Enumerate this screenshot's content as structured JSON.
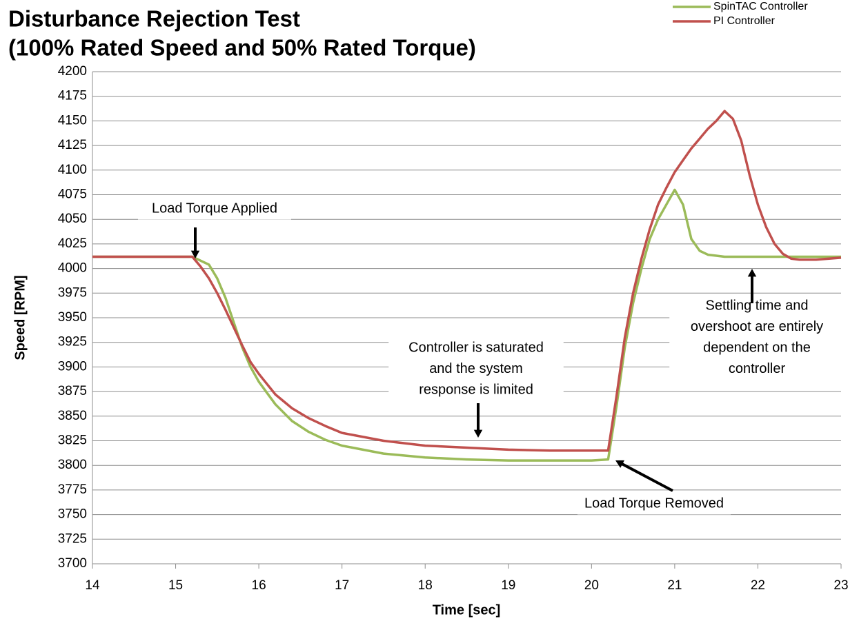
{
  "chart_data": {
    "type": "line",
    "title": "Disturbance Rejection Test",
    "subtitle": "(100% Rated Speed and 50% Rated Torque)",
    "xlabel": "Time [sec]",
    "ylabel": "Speed [RPM]",
    "x": [
      14,
      15,
      15.2,
      15.3,
      15.4,
      15.5,
      15.6,
      15.7,
      15.8,
      15.9,
      16,
      16.2,
      16.4,
      16.6,
      16.8,
      17,
      17.5,
      18,
      18.5,
      19,
      19.5,
      20,
      20.2,
      20.3,
      20.4,
      20.5,
      20.6,
      20.7,
      20.8,
      20.9,
      21,
      21.1,
      21.2,
      21.3,
      21.4,
      21.5,
      21.6,
      21.7,
      21.8,
      21.9,
      22,
      22.1,
      22.2,
      22.3,
      22.4,
      22.5,
      22.7,
      23
    ],
    "series": [
      {
        "name": "SpinTAC Controller",
        "color": "#9bbb59",
        "values": [
          4012,
          4012,
          4012,
          4008,
          4004,
          3990,
          3970,
          3945,
          3920,
          3900,
          3885,
          3862,
          3845,
          3834,
          3826,
          3820,
          3812,
          3808,
          3806,
          3805,
          3805,
          3805,
          3806,
          3860,
          3920,
          3965,
          4000,
          4030,
          4050,
          4065,
          4080,
          4065,
          4030,
          4018,
          4014,
          4013,
          4012,
          4012,
          4012,
          4012,
          4012,
          4012,
          4012,
          4012,
          4012,
          4012,
          4012,
          4012
        ]
      },
      {
        "name": "PI Controller",
        "color": "#c0504d",
        "values": [
          4012,
          4012,
          4012,
          4002,
          3990,
          3975,
          3958,
          3940,
          3922,
          3905,
          3893,
          3872,
          3858,
          3848,
          3840,
          3833,
          3825,
          3820,
          3818,
          3816,
          3815,
          3815,
          3815,
          3870,
          3930,
          3975,
          4010,
          4040,
          4065,
          4082,
          4098,
          4110,
          4122,
          4132,
          4142,
          4150,
          4160,
          4152,
          4130,
          4095,
          4065,
          4042,
          4025,
          4015,
          4010,
          4009,
          4009,
          4011
        ]
      }
    ],
    "xlim": [
      14,
      23
    ],
    "xticks": [
      14,
      15,
      16,
      17,
      18,
      19,
      20,
      21,
      22,
      23
    ],
    "ylim": [
      3700,
      4200
    ],
    "yticks": [
      3700,
      3725,
      3750,
      3775,
      3800,
      3825,
      3850,
      3875,
      3900,
      3925,
      3950,
      3975,
      4000,
      4025,
      4050,
      4075,
      4100,
      4125,
      4150,
      4175,
      4200
    ],
    "grid": true,
    "legend": "top-right",
    "annotations": [
      {
        "lines": [
          "Load Torque  Applied"
        ]
      },
      {
        "lines": [
          "Controller is saturated",
          "and the system",
          "response  is limited"
        ]
      },
      {
        "lines": [
          "Load Torque  Removed"
        ]
      },
      {
        "lines": [
          "Settling time and",
          "overshoot  are entirely",
          "dependent  on the",
          "controller"
        ]
      }
    ]
  }
}
